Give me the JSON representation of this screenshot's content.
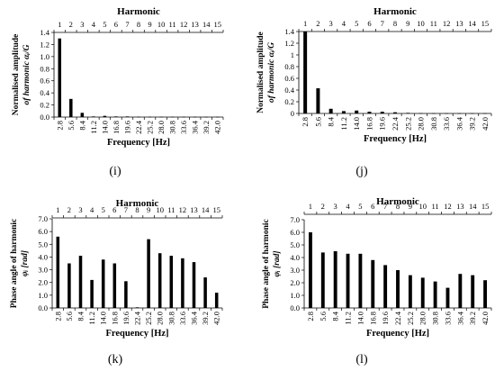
{
  "panels": [
    {
      "caption": "(i)"
    },
    {
      "caption": "(j)"
    },
    {
      "caption": "(k)"
    },
    {
      "caption": "(l)"
    }
  ],
  "chart_data": [
    {
      "type": "bar",
      "title": "Harmonic",
      "top_ticks": [
        "1",
        "2",
        "3",
        "4",
        "5",
        "6",
        "7",
        "8",
        "9",
        "10",
        "11",
        "12",
        "13",
        "14",
        "15"
      ],
      "categories": [
        "2.8",
        "5.6",
        "8.4",
        "11.2",
        "14.0",
        "16.8",
        "19.6",
        "22.4",
        "25.2",
        "28.0",
        "30.8",
        "33.6",
        "36.4",
        "39.2",
        "42.0"
      ],
      "values": [
        1.3,
        0.3,
        0.07,
        0.01,
        0.02,
        0.01,
        0.01,
        0.005,
        0.005,
        0.005,
        0.004,
        0.004,
        0.003,
        0.003,
        0.003
      ],
      "xlabel": "Frequency [Hz]",
      "ylabel_line1": "Normalised amplitude",
      "ylabel_line2": "of harmonic  αᵢ/G",
      "ylim": [
        0,
        1.4
      ],
      "yticks": [
        "0.0",
        "0.2",
        "0.4",
        "0.6",
        "0.8",
        "1.0",
        "1.2",
        "1.4"
      ],
      "bar_color": "#000000"
    },
    {
      "type": "bar",
      "title": "Harmonic",
      "top_ticks": [
        "1",
        "2",
        "3",
        "4",
        "5",
        "6",
        "7",
        "8",
        "9",
        "10",
        "11",
        "12",
        "13",
        "14",
        "15"
      ],
      "categories": [
        "2.8",
        "5.6",
        "8.4",
        "11.2",
        "14.0",
        "16.8",
        "19.6",
        "22.4",
        "25.2",
        "28.0",
        "30.8",
        "33.6",
        "36.4",
        "39.2",
        "42.0"
      ],
      "values": [
        1.4,
        0.43,
        0.08,
        0.04,
        0.05,
        0.03,
        0.03,
        0.02,
        0.01,
        0.005,
        0.004,
        0.004,
        0.003,
        0.003,
        0.003
      ],
      "xlabel": "Frequency [Hz]",
      "ylabel_line1": "Normalised amplitude",
      "ylabel_line2": "of harmonic  αᵢ/G",
      "ylim": [
        0,
        1.4
      ],
      "yticks": [
        "0",
        "0.2",
        "0.4",
        "0.6",
        "0.8",
        "1",
        "1.2",
        "1.4"
      ],
      "bar_color": "#000000"
    },
    {
      "type": "bar",
      "title": "Harmonic",
      "top_ticks": [
        "1",
        "2",
        "3",
        "4",
        "5",
        "6",
        "7",
        "8",
        "9",
        "10",
        "11",
        "12",
        "13",
        "14",
        "15"
      ],
      "categories": [
        "2.8",
        "5.6",
        "8.4",
        "11.2",
        "14.0",
        "16.8",
        "19.6",
        "22.4",
        "25.2",
        "28.0",
        "30.8",
        "33.6",
        "36.4",
        "39.2",
        "42.0"
      ],
      "values": [
        5.6,
        3.5,
        4.1,
        2.2,
        3.8,
        3.5,
        2.1,
        0.05,
        5.4,
        4.3,
        4.1,
        3.9,
        3.6,
        2.4,
        1.2
      ],
      "xlabel": "Frequency [Hz]",
      "ylabel_line1": "Phase angle of harmonic",
      "ylabel_line2": "φᵢ  [rad]",
      "ylim": [
        0,
        7.0
      ],
      "yticks": [
        "0.0",
        "1.0",
        "2.0",
        "3.0",
        "4.0",
        "5.0",
        "6.0",
        "7.0"
      ],
      "bar_color": "#000000"
    },
    {
      "type": "bar",
      "title": "Harmonic",
      "top_ticks": [
        "1",
        "2",
        "3",
        "4",
        "5",
        "6",
        "7",
        "8",
        "9",
        "10",
        "11",
        "12",
        "13",
        "14",
        "15"
      ],
      "categories": [
        "2.8",
        "5.6",
        "8.4",
        "11.2",
        "14.0",
        "16.8",
        "19.6",
        "22.4",
        "25.2",
        "28.0",
        "30.8",
        "33.6",
        "36.4",
        "39.2",
        "42.0"
      ],
      "values": [
        6.0,
        4.4,
        4.5,
        4.3,
        4.3,
        3.8,
        3.4,
        3.0,
        2.6,
        2.4,
        2.1,
        1.6,
        2.7,
        2.6,
        2.2
      ],
      "xlabel": "Frequency [Hz]",
      "ylabel_line1": "Phase angle of harmonic",
      "ylabel_line2": "φᵢ  [rad]",
      "ylim": [
        0,
        7.0
      ],
      "yticks": [
        "0.0",
        "1.0",
        "2.0",
        "3.0",
        "4.0",
        "5.0",
        "6.0",
        "7.0"
      ],
      "bar_color": "#000000"
    }
  ]
}
